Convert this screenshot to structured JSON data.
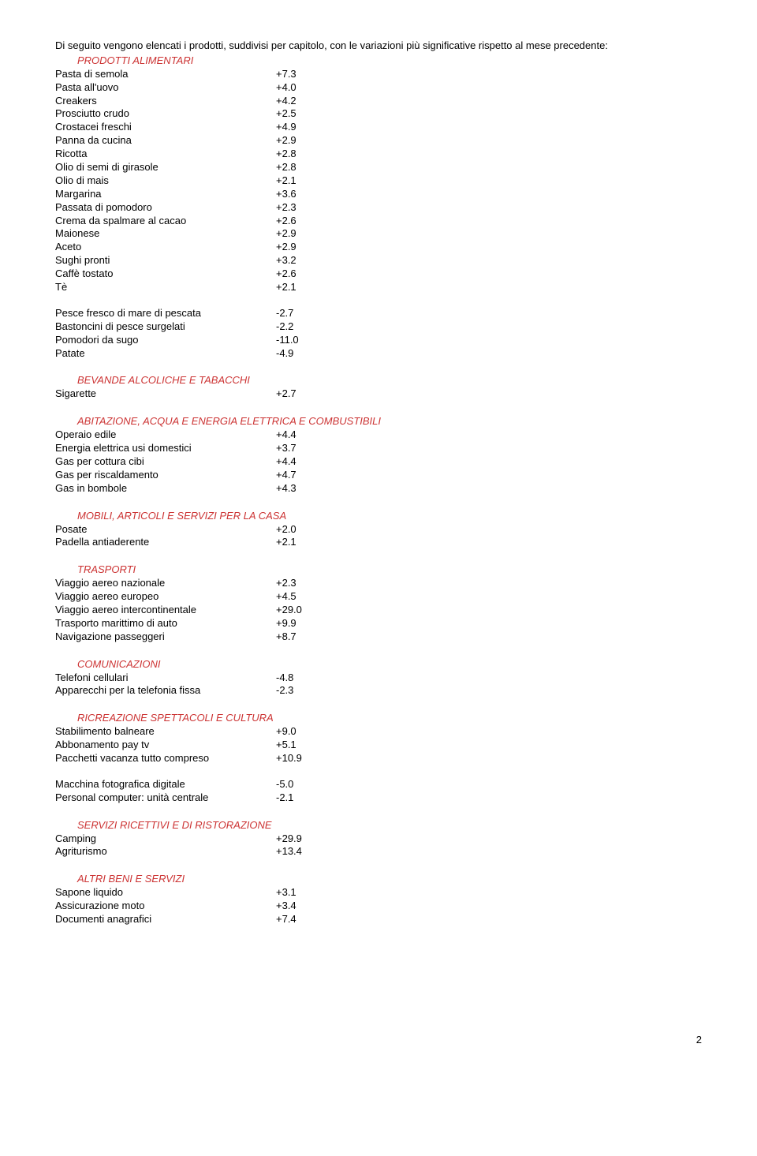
{
  "intro": "Di seguito vengono elencati i prodotti, suddivisi per capitolo, con le variazioni più significative rispetto al mese precedente:",
  "sections": [
    {
      "title": "PRODOTTI ALIMENTARI",
      "groups": [
        [
          {
            "label": "Pasta di semola",
            "value": "+7.3"
          },
          {
            "label": "Pasta all'uovo",
            "value": "+4.0"
          },
          {
            "label": "Creakers",
            "value": "+4.2"
          },
          {
            "label": "Prosciutto crudo",
            "value": "+2.5"
          },
          {
            "label": "Crostacei freschi",
            "value": "+4.9"
          },
          {
            "label": "Panna da cucina",
            "value": "+2.9"
          },
          {
            "label": "Ricotta",
            "value": "+2.8"
          },
          {
            "label": "Olio di semi di girasole",
            "value": "+2.8"
          },
          {
            "label": "Olio di mais",
            "value": "+2.1"
          },
          {
            "label": "Margarina",
            "value": "+3.6"
          },
          {
            "label": "Passata di pomodoro",
            "value": "+2.3"
          },
          {
            "label": "Crema da spalmare al cacao",
            "value": "+2.6"
          },
          {
            "label": "Maionese",
            "value": "+2.9"
          },
          {
            "label": "Aceto",
            "value": "+2.9"
          },
          {
            "label": "Sughi pronti",
            "value": "+3.2"
          },
          {
            "label": "Caffè tostato",
            "value": "+2.6"
          },
          {
            "label": "Tè",
            "value": "+2.1"
          }
        ],
        [
          {
            "label": "Pesce fresco di mare di pescata",
            "value": "-2.7"
          },
          {
            "label": "Bastoncini di pesce surgelati",
            "value": "-2.2"
          },
          {
            "label": "Pomodori da sugo",
            "value": "-11.0"
          },
          {
            "label": "Patate",
            "value": "-4.9"
          }
        ]
      ]
    },
    {
      "title": "BEVANDE ALCOLICHE E TABACCHI",
      "groups": [
        [
          {
            "label": "Sigarette",
            "value": "+2.7"
          }
        ]
      ]
    },
    {
      "title": "ABITAZIONE, ACQUA E ENERGIA ELETTRICA E COMBUSTIBILI",
      "groups": [
        [
          {
            "label": "Operaio edile",
            "value": "+4.4"
          },
          {
            "label": "Energia elettrica usi domestici",
            "value": "+3.7"
          },
          {
            "label": "Gas per cottura cibi",
            "value": "+4.4"
          },
          {
            "label": "Gas per riscaldamento",
            "value": "+4.7"
          },
          {
            "label": "Gas in bombole",
            "value": "+4.3"
          }
        ]
      ]
    },
    {
      "title": "MOBILI, ARTICOLI E SERVIZI PER LA CASA",
      "groups": [
        [
          {
            "label": "Posate",
            "value": "+2.0"
          },
          {
            "label": "Padella antiaderente",
            "value": "+2.1"
          }
        ]
      ]
    },
    {
      "title": "TRASPORTI",
      "groups": [
        [
          {
            "label": "Viaggio aereo nazionale",
            "value": "+2.3"
          },
          {
            "label": "Viaggio aereo europeo",
            "value": "+4.5"
          },
          {
            "label": "Viaggio aereo intercontinentale",
            "value": "+29.0"
          },
          {
            "label": "Trasporto marittimo di auto",
            "value": "+9.9"
          },
          {
            "label": "Navigazione passeggeri",
            "value": "+8.7"
          }
        ]
      ]
    },
    {
      "title": "COMUNICAZIONI",
      "groups": [
        [
          {
            "label": "Telefoni cellulari",
            "value": "-4.8"
          },
          {
            "label": "Apparecchi per la telefonia fissa",
            "value": "-2.3"
          }
        ]
      ]
    },
    {
      "title": "RICREAZIONE SPETTACOLI E CULTURA",
      "groups": [
        [
          {
            "label": "Stabilimento balneare",
            "value": "+9.0"
          },
          {
            "label": "Abbonamento pay tv",
            "value": "+5.1"
          },
          {
            "label": "Pacchetti vacanza tutto compreso",
            "value": "+10.9"
          }
        ],
        [
          {
            "label": "Macchina fotografica digitale",
            "value": "-5.0"
          },
          {
            "label": "Personal computer: unità centrale",
            "value": "-2.1"
          }
        ]
      ]
    },
    {
      "title": "SERVIZI RICETTIVI E DI RISTORAZIONE",
      "groups": [
        [
          {
            "label": "Camping",
            "value": "+29.9"
          },
          {
            "label": "Agriturismo",
            "value": "+13.4"
          }
        ]
      ]
    },
    {
      "title": "ALTRI BENI E SERVIZI",
      "groups": [
        [
          {
            "label": "Sapone liquido",
            "value": "+3.1"
          },
          {
            "label": "Assicurazione moto",
            "value": "+3.4"
          },
          {
            "label": "Documenti anagrafici",
            "value": "+7.4"
          }
        ]
      ]
    }
  ],
  "pageNumber": "2"
}
